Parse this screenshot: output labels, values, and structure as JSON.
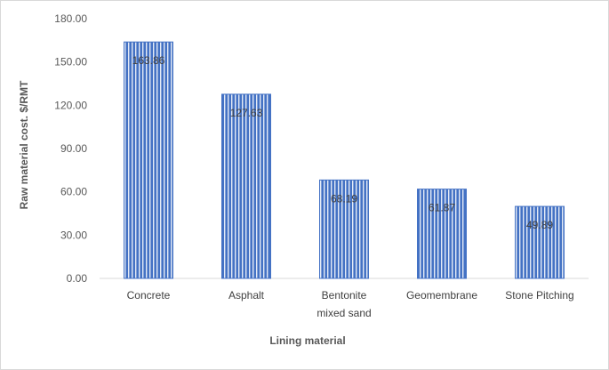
{
  "chart_data": {
    "type": "bar",
    "categories": [
      [
        "Concrete"
      ],
      [
        "Asphalt"
      ],
      [
        "Bentonite",
        "mixed sand"
      ],
      [
        "Geomembrane"
      ],
      [
        "Stone Pitching"
      ]
    ],
    "values": [
      163.86,
      127.63,
      68.19,
      61.87,
      49.89
    ],
    "data_labels": [
      "163.86",
      "127.63",
      "68.19",
      "61.87",
      "49.89"
    ],
    "title": "",
    "xlabel": "Lining material",
    "ylabel": "Raw material cost. $/RMT",
    "ylim": [
      0,
      180
    ],
    "yticks": [
      "0.00",
      "30.00",
      "60.00",
      "90.00",
      "120.00",
      "150.00",
      "180.00"
    ],
    "grid": false,
    "legend": "none",
    "bar_color": "#4472c4",
    "bar_stripe_color": "#ffffff"
  }
}
